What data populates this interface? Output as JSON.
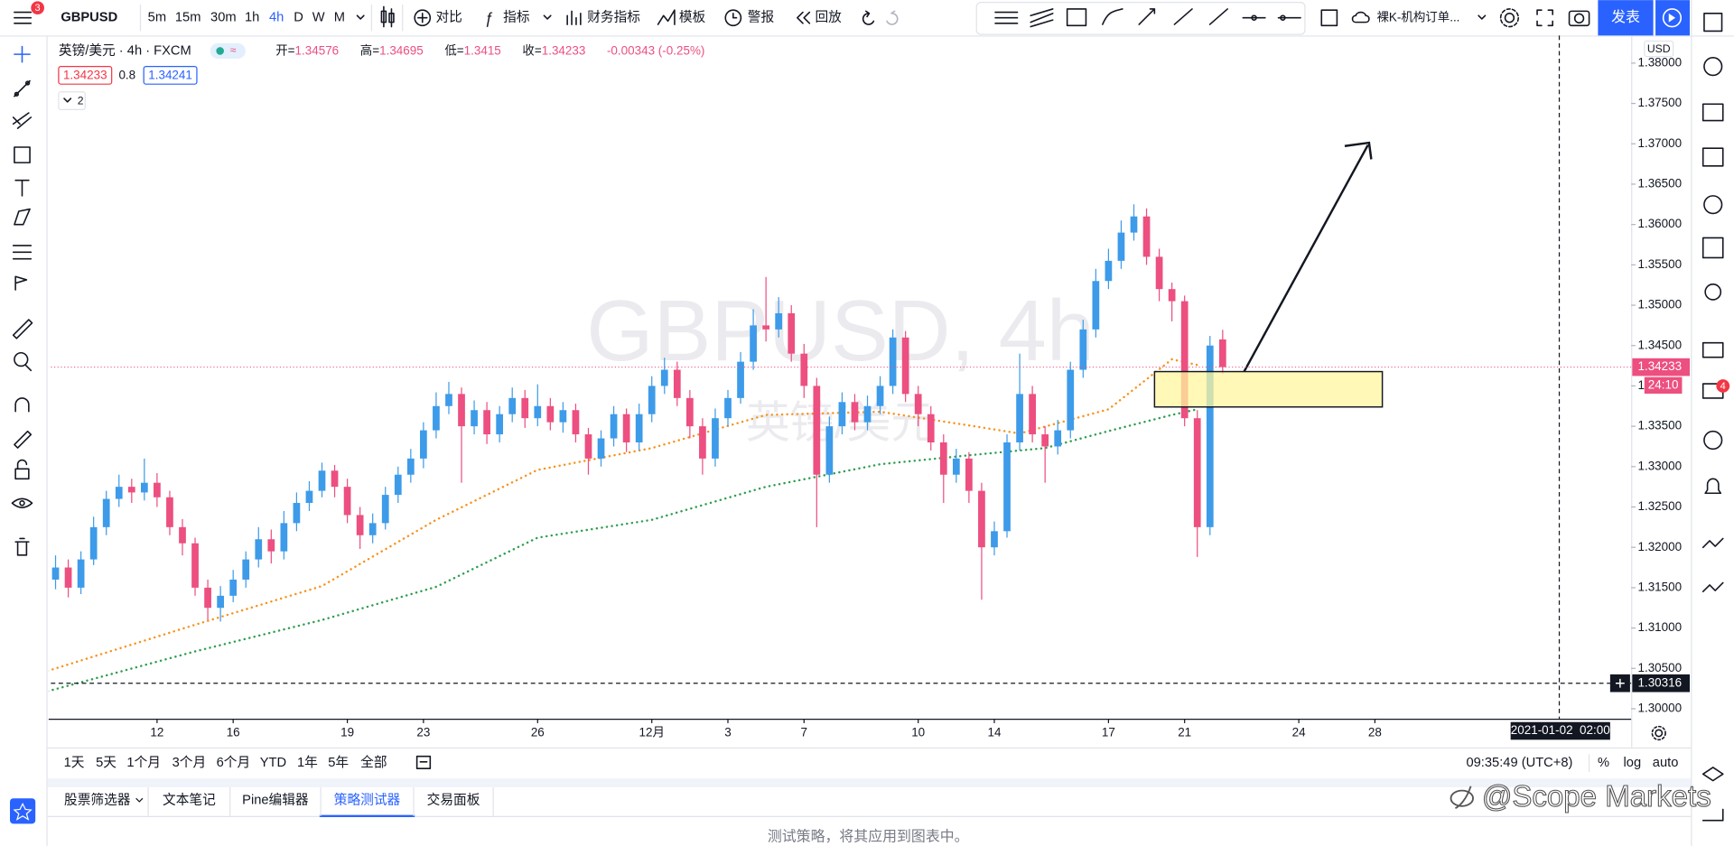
{
  "toolbar": {
    "symbol": "GBPUSD",
    "badge": "3",
    "intervals": [
      "5m",
      "15m",
      "30m",
      "1h",
      "4h",
      "D",
      "W",
      "M"
    ],
    "active_interval": 4,
    "buttons": [
      "对比",
      "指标",
      "财务指标",
      "模板",
      "警报",
      "回放"
    ],
    "layout_name": "裸K-机构订单...",
    "publish": "发表"
  },
  "legend": {
    "title": "英镑/美元 · 4h · FXCM",
    "ohlc_labels": [
      "开=",
      "高=",
      "低=",
      "收="
    ],
    "change": "-0.00343 (-0.25%)",
    "bid": 1.34233,
    "spread": 0.8,
    "ask": 1.34241,
    "collapse": "2"
  },
  "watermark": {
    "symbol": "GBPUSD, 4h",
    "name": "英镑/美元"
  },
  "chart_data": {
    "type": "candlestick",
    "up_color": "#3d9be9",
    "down_color": "#ec4f80",
    "open": [
      1.314,
      1.316,
      1.3175,
      1.315,
      1.3185,
      1.3225,
      1.326,
      1.3275,
      1.3268,
      1.328,
      1.3262,
      1.3225,
      1.3205,
      1.315,
      1.3125,
      1.314,
      1.316,
      1.3185,
      1.321,
      1.3195,
      1.323,
      1.3255,
      1.327,
      1.3295,
      1.3275,
      1.324,
      1.3215,
      1.323,
      1.3265,
      1.329,
      1.331,
      1.3345,
      1.3375,
      1.339,
      1.335,
      1.337,
      1.334,
      1.3365,
      1.3385,
      1.336,
      1.3375,
      1.3355,
      1.337,
      1.334,
      1.331,
      1.3335,
      1.3365,
      1.333,
      1.3365,
      1.34,
      1.342,
      1.3385,
      1.335,
      1.331,
      1.336,
      1.3385,
      1.343,
      1.3475,
      1.347,
      1.349,
      1.344,
      1.34,
      1.329,
      1.335,
      1.338,
      1.3355,
      1.3375,
      1.34,
      1.346,
      1.339,
      1.3365,
      1.333,
      1.329,
      1.331,
      1.327,
      1.32,
      1.322,
      1.333,
      1.339,
      1.334,
      1.3325,
      1.3345,
      1.342,
      1.347,
      1.353,
      1.3555,
      1.359,
      1.361,
      1.356,
      1.352,
      1.3505,
      1.336,
      1.3225,
      1.34576
    ],
    "high": [
      1.3172,
      1.319,
      1.3185,
      1.3195,
      1.3238,
      1.327,
      1.329,
      1.3285,
      1.331,
      1.3292,
      1.327,
      1.3235,
      1.3212,
      1.316,
      1.3152,
      1.3172,
      1.3195,
      1.3225,
      1.3222,
      1.3245,
      1.3268,
      1.3282,
      1.3305,
      1.3302,
      1.3285,
      1.325,
      1.3242,
      1.3275,
      1.33,
      1.3322,
      1.3355,
      1.3392,
      1.3405,
      1.3398,
      1.3382,
      1.338,
      1.3375,
      1.3398,
      1.3395,
      1.3402,
      1.3385,
      1.338,
      1.3378,
      1.3348,
      1.3345,
      1.3375,
      1.3372,
      1.3378,
      1.3412,
      1.3435,
      1.343,
      1.3395,
      1.336,
      1.3372,
      1.3395,
      1.3442,
      1.3495,
      1.3535,
      1.351,
      1.35,
      1.3452,
      1.341,
      1.3362,
      1.3392,
      1.339,
      1.3388,
      1.3412,
      1.347,
      1.3468,
      1.34,
      1.3375,
      1.334,
      1.3322,
      1.3318,
      1.328,
      1.3232,
      1.334,
      1.344,
      1.34,
      1.335,
      1.3358,
      1.343,
      1.3482,
      1.3545,
      1.357,
      1.3605,
      1.3625,
      1.362,
      1.357,
      1.3528,
      1.3512,
      1.337,
      1.3462,
      1.34695
    ],
    "low": [
      1.3128,
      1.3148,
      1.3138,
      1.3142,
      1.3178,
      1.3215,
      1.325,
      1.3255,
      1.3258,
      1.325,
      1.3215,
      1.319,
      1.314,
      1.311,
      1.3108,
      1.3132,
      1.315,
      1.3175,
      1.318,
      1.3185,
      1.322,
      1.3245,
      1.3262,
      1.3262,
      1.323,
      1.3198,
      1.3205,
      1.3222,
      1.3255,
      1.328,
      1.3298,
      1.3335,
      1.3365,
      1.328,
      1.334,
      1.3328,
      1.333,
      1.3355,
      1.3348,
      1.335,
      1.3345,
      1.3342,
      1.333,
      1.329,
      1.33,
      1.3325,
      1.3318,
      1.332,
      1.3355,
      1.339,
      1.3375,
      1.3335,
      1.329,
      1.33,
      1.335,
      1.3378,
      1.342,
      1.3455,
      1.346,
      1.343,
      1.3385,
      1.3225,
      1.328,
      1.334,
      1.3345,
      1.3345,
      1.3365,
      1.339,
      1.338,
      1.335,
      1.332,
      1.3255,
      1.328,
      1.3255,
      1.3135,
      1.319,
      1.3212,
      1.332,
      1.333,
      1.328,
      1.3315,
      1.3335,
      1.341,
      1.346,
      1.352,
      1.3545,
      1.358,
      1.355,
      1.3505,
      1.348,
      1.335,
      1.3188,
      1.3215,
      1.3415
    ],
    "close": [
      1.316,
      1.3175,
      1.315,
      1.3185,
      1.3225,
      1.326,
      1.3275,
      1.3268,
      1.328,
      1.3262,
      1.3225,
      1.3205,
      1.315,
      1.3125,
      1.314,
      1.316,
      1.3185,
      1.321,
      1.3195,
      1.323,
      1.3255,
      1.327,
      1.3295,
      1.3275,
      1.324,
      1.3215,
      1.323,
      1.3265,
      1.329,
      1.331,
      1.3345,
      1.3375,
      1.339,
      1.335,
      1.337,
      1.334,
      1.3365,
      1.3385,
      1.336,
      1.3375,
      1.3355,
      1.337,
      1.334,
      1.331,
      1.3335,
      1.3365,
      1.333,
      1.3365,
      1.34,
      1.342,
      1.3385,
      1.335,
      1.331,
      1.336,
      1.3385,
      1.343,
      1.3475,
      1.347,
      1.349,
      1.344,
      1.34,
      1.329,
      1.335,
      1.338,
      1.3355,
      1.3375,
      1.34,
      1.346,
      1.339,
      1.3365,
      1.333,
      1.329,
      1.331,
      1.327,
      1.32,
      1.322,
      1.333,
      1.339,
      1.334,
      1.3325,
      1.3345,
      1.342,
      1.347,
      1.353,
      1.3555,
      1.359,
      1.361,
      1.356,
      1.352,
      1.3505,
      1.336,
      1.3225,
      1.345,
      1.34233
    ],
    "overlays": [
      {
        "color": "#f7931e",
        "x": [
          0,
          12,
          22,
          31,
          39,
          48,
          57,
          66,
          73,
          77,
          84,
          89,
          91
        ],
        "values": [
          1.3045,
          1.3104,
          1.3152,
          1.3234,
          1.3296,
          1.3323,
          1.3364,
          1.3368,
          1.3351,
          1.3341,
          1.3371,
          1.3433,
          1.3426
        ]
      },
      {
        "color": "#2e9e4f",
        "x": [
          0,
          12,
          22,
          31,
          39,
          48,
          57,
          66,
          73,
          79,
          84,
          89,
          91
        ],
        "values": [
          1.302,
          1.3071,
          1.311,
          1.3151,
          1.3212,
          1.3234,
          1.3275,
          1.3303,
          1.3314,
          1.3323,
          1.3344,
          1.3364,
          1.3371
        ]
      }
    ],
    "xlim": [
      0.63,
      125.2
    ],
    "xticks": [
      {
        "value": 9,
        "label": "12"
      },
      {
        "value": 15,
        "label": "16"
      },
      {
        "value": 24,
        "label": "19"
      },
      {
        "value": 30,
        "label": "23"
      },
      {
        "value": 39,
        "label": "26"
      },
      {
        "value": 48,
        "label": "12月"
      },
      {
        "value": 54,
        "label": "3"
      },
      {
        "value": 60,
        "label": "7"
      },
      {
        "value": 69,
        "label": "10"
      },
      {
        "value": 75,
        "label": "14"
      },
      {
        "value": 84,
        "label": "17"
      },
      {
        "value": 90,
        "label": "21"
      },
      {
        "value": 99,
        "label": "24"
      },
      {
        "value": 105,
        "label": "28"
      }
    ],
    "ylim": [
      1.29876,
      1.38342
    ],
    "yticks": [
      {
        "value": 1.3,
        "label": "1.30000"
      },
      {
        "value": 1.305,
        "label": "1.30500"
      },
      {
        "value": 1.31,
        "label": "1.31000"
      },
      {
        "value": 1.315,
        "label": "1.31500"
      },
      {
        "value": 1.32,
        "label": "1.32000"
      },
      {
        "value": 1.325,
        "label": "1.32500"
      },
      {
        "value": 1.33,
        "label": "1.33000"
      },
      {
        "value": 1.335,
        "label": "1.33500"
      },
      {
        "value": 1.34,
        "label": "1.34000"
      },
      {
        "value": 1.345,
        "label": "1.34500"
      },
      {
        "value": 1.35,
        "label": "1.35000"
      },
      {
        "value": 1.355,
        "label": "1.35500"
      },
      {
        "value": 1.36,
        "label": "1.36000"
      },
      {
        "value": 1.365,
        "label": "1.36500"
      },
      {
        "value": 1.37,
        "label": "1.37000"
      },
      {
        "value": 1.375,
        "label": "1.37500"
      },
      {
        "value": 1.38,
        "label": "1.38000"
      }
    ],
    "grid": false,
    "currency": "USD",
    "last_price": {
      "value": 1.34233,
      "countdown": "24:10"
    },
    "crosshair": {
      "price": 1.30316,
      "time": "2021-01-02  02:00"
    }
  },
  "range_bar": {
    "periods": [
      "1天",
      "5天",
      "1个月",
      "3个月",
      "6个月",
      "YTD",
      "1年",
      "5年",
      "全部"
    ],
    "time": "09:35:49 (UTC+8)",
    "options": [
      "%",
      "log",
      "auto"
    ]
  },
  "bottom_panel": {
    "tabs": [
      "股票筛选器",
      "文本笔记",
      "Pine编辑器",
      "策略测试器",
      "交易面板"
    ],
    "active_tab": 3,
    "message": "测试策略，将其应用到图表中。"
  },
  "sidebar": {
    "badge": "4"
  },
  "brand": "@Scope Markets"
}
